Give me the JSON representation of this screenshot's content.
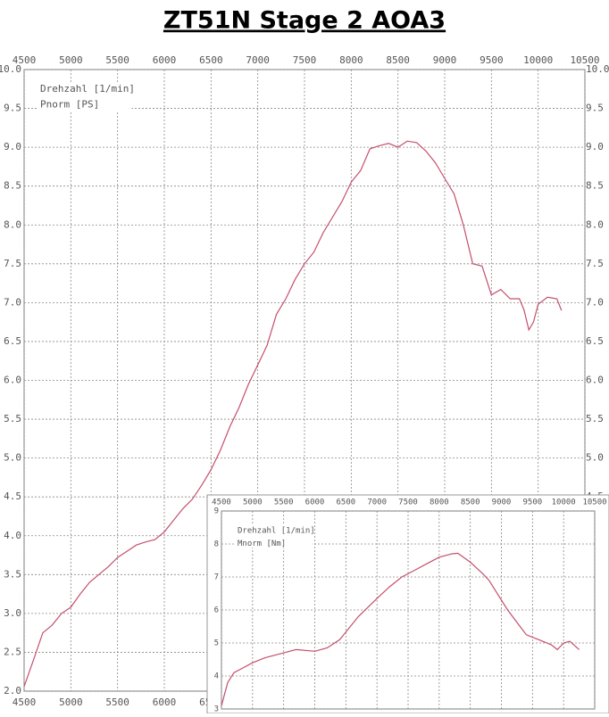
{
  "chart_data": [
    {
      "type": "line",
      "title": "ZT51N  Stage 2  AOA3",
      "x_label": "Drehzahl [1/min]",
      "x": [
        4500,
        4600,
        4700,
        4800,
        4900,
        5000,
        5100,
        5200,
        5300,
        5400,
        5500,
        5600,
        5700,
        5800,
        5900,
        6000,
        6100,
        6200,
        6300,
        6400,
        6500,
        6600,
        6700,
        6800,
        6900,
        7000,
        7100,
        7200,
        7300,
        7400,
        7500,
        7600,
        7700,
        7800,
        7900,
        8000,
        8100,
        8200,
        8300,
        8400,
        8500,
        8600,
        8700,
        8800,
        8900,
        9000,
        9100,
        9200,
        9300,
        9400,
        9500,
        9600,
        9700,
        9800,
        9850,
        9900,
        9950,
        10000,
        10100,
        10200,
        10250
      ],
      "series": [
        {
          "name": "Pnorm [PS]",
          "color": "#c4506c",
          "values": [
            2.06,
            2.4,
            2.75,
            2.85,
            3.0,
            3.08,
            3.25,
            3.4,
            3.5,
            3.6,
            3.72,
            3.8,
            3.88,
            3.92,
            3.95,
            4.05,
            4.2,
            4.35,
            4.47,
            4.65,
            4.85,
            5.1,
            5.4,
            5.65,
            5.95,
            6.2,
            6.45,
            6.85,
            7.05,
            7.3,
            7.5,
            7.65,
            7.9,
            8.1,
            8.3,
            8.55,
            8.7,
            8.98,
            9.02,
            9.05,
            9.0,
            9.08,
            9.06,
            8.95,
            8.8,
            8.6,
            8.4,
            8.0,
            7.5,
            7.47,
            7.1,
            7.17,
            7.05,
            7.05,
            6.9,
            6.65,
            6.75,
            6.98,
            7.07,
            7.05,
            6.9
          ]
        }
      ],
      "xlim": [
        4500,
        10500
      ],
      "xticks": [
        4500,
        5000,
        5500,
        6000,
        6500,
        7000,
        7500,
        8000,
        8500,
        9000,
        9500,
        10000,
        10500
      ],
      "ylim": [
        2,
        10
      ],
      "yticks": [
        {
          "value": 2,
          "label": "2.0"
        },
        2.5,
        {
          "value": 3,
          "label": "3.0"
        },
        3.5,
        {
          "value": 4,
          "label": "4.0"
        },
        4.5,
        {
          "value": 5,
          "label": "5.0"
        },
        5.5,
        {
          "value": 6,
          "label": "6.0"
        },
        6.5,
        {
          "value": 7,
          "label": "7.0"
        },
        7.5,
        {
          "value": 8,
          "label": "8.0"
        },
        8.5,
        {
          "value": 9,
          "label": "9.0"
        },
        9.5,
        {
          "value": 10,
          "label": "10.0"
        }
      ],
      "grid": true
    },
    {
      "type": "line",
      "x_label": "Drehzahl [1/min]",
      "x": [
        4500,
        4600,
        4700,
        4800,
        5000,
        5200,
        5500,
        5700,
        6000,
        6200,
        6400,
        6700,
        7000,
        7200,
        7400,
        7600,
        7800,
        8000,
        8200,
        8300,
        8500,
        8700,
        8800,
        9000,
        9100,
        9300,
        9400,
        9600,
        9800,
        9900,
        10000,
        10100,
        10250
      ],
      "series": [
        {
          "name": "Mnorm [Nm]",
          "color": "#c4506c",
          "values": [
            3.1,
            3.8,
            4.1,
            4.2,
            4.4,
            4.55,
            4.7,
            4.8,
            4.75,
            4.85,
            5.1,
            5.8,
            6.35,
            6.7,
            7.0,
            7.2,
            7.4,
            7.6,
            7.7,
            7.72,
            7.45,
            7.1,
            6.9,
            6.3,
            6.0,
            5.5,
            5.25,
            5.1,
            4.95,
            4.8,
            5.0,
            5.05,
            4.8
          ]
        }
      ],
      "xlim": [
        4500,
        10500
      ],
      "xticks": [
        4500,
        5000,
        5500,
        6000,
        6500,
        7000,
        7500,
        8000,
        8500,
        9000,
        9500,
        10000,
        10500
      ],
      "ylim": [
        3,
        9
      ],
      "yticks": [
        3,
        4,
        5,
        6,
        7,
        8,
        9
      ],
      "grid": true
    }
  ]
}
